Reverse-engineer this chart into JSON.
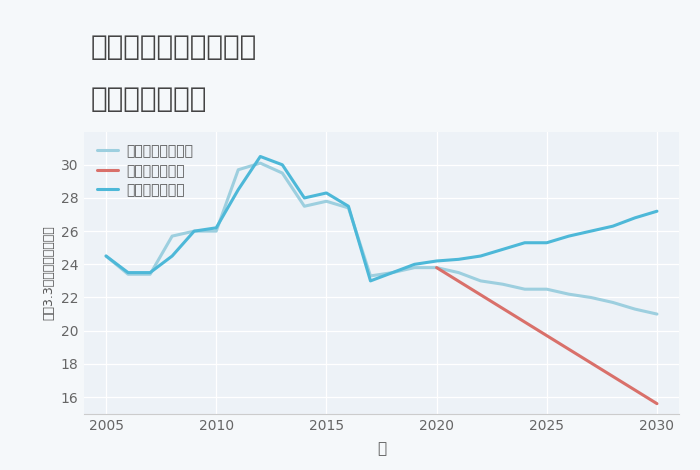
{
  "title_line1": "千葉県成田市東ノ台の",
  "title_line2": "土地の価格推移",
  "xlabel": "年",
  "ylabel": "坪（3.3㎡）単価（万円）",
  "ylim": [
    15,
    32
  ],
  "xlim": [
    2004,
    2031
  ],
  "yticks": [
    16,
    18,
    20,
    22,
    24,
    26,
    28,
    30
  ],
  "xticks": [
    2005,
    2010,
    2015,
    2020,
    2025,
    2030
  ],
  "fig_bg_color": "#f5f8fa",
  "plot_bg_color": "#edf2f7",
  "grid_color": "#ffffff",
  "good_scenario": {
    "label": "グッドシナリオ",
    "color": "#4db8d8",
    "x": [
      2005,
      2006,
      2007,
      2008,
      2009,
      2010,
      2011,
      2012,
      2013,
      2014,
      2015,
      2016,
      2017,
      2018,
      2019,
      2020,
      2021,
      2022,
      2023,
      2024,
      2025,
      2026,
      2027,
      2028,
      2029,
      2030
    ],
    "y": [
      24.5,
      23.5,
      23.5,
      24.5,
      26.0,
      26.2,
      28.5,
      30.5,
      30.0,
      28.0,
      28.3,
      27.5,
      23.0,
      23.5,
      24.0,
      24.2,
      24.3,
      24.5,
      24.9,
      25.3,
      25.3,
      25.7,
      26.0,
      26.3,
      26.8,
      27.2
    ],
    "linewidth": 2.2
  },
  "bad_scenario": {
    "label": "バッドシナリオ",
    "color": "#d9706a",
    "x": [
      2020,
      2030
    ],
    "y": [
      23.8,
      15.6
    ],
    "linewidth": 2.2
  },
  "normal_scenario": {
    "label": "ノーマルシナリオ",
    "color": "#9dcfdf",
    "x": [
      2005,
      2006,
      2007,
      2008,
      2009,
      2010,
      2011,
      2012,
      2013,
      2014,
      2015,
      2016,
      2017,
      2018,
      2019,
      2020,
      2021,
      2022,
      2023,
      2024,
      2025,
      2026,
      2027,
      2028,
      2029,
      2030
    ],
    "y": [
      24.5,
      23.4,
      23.4,
      25.7,
      26.0,
      26.0,
      29.7,
      30.1,
      29.5,
      27.5,
      27.8,
      27.4,
      23.3,
      23.5,
      23.8,
      23.8,
      23.5,
      23.0,
      22.8,
      22.5,
      22.5,
      22.2,
      22.0,
      21.7,
      21.3,
      21.0
    ],
    "linewidth": 2.2
  },
  "title_fontsize": 20,
  "label_fontsize": 11,
  "tick_fontsize": 10,
  "legend_fontsize": 10
}
